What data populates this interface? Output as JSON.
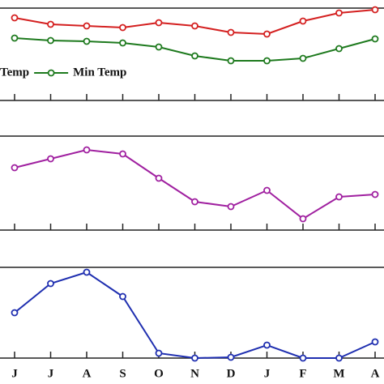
{
  "chart_data": [
    {
      "type": "line",
      "ylim": [
        0,
        114
      ],
      "legend": "lower left",
      "series": [
        {
          "name": "Temp",
          "color": "#d42020",
          "values": [
            102,
            94,
            92,
            90,
            96,
            92,
            84,
            82,
            98,
            108,
            112
          ]
        },
        {
          "name": "Min Temp",
          "color": "#1e7a1e",
          "values": [
            77,
            74,
            73,
            71,
            66,
            55,
            49,
            49,
            52,
            64,
            76
          ]
        }
      ]
    },
    {
      "type": "line",
      "ylim": [
        0,
        116
      ],
      "series": [
        {
          "color": "#a020a0",
          "values": [
            77,
            88,
            99,
            94,
            64,
            35,
            29,
            49,
            14,
            41,
            44
          ]
        }
      ]
    },
    {
      "type": "line",
      "ylim": [
        0,
        112
      ],
      "categories": [
        "J",
        "J",
        "A",
        "S",
        "O",
        "N",
        "D",
        "J",
        "F",
        "M",
        "A"
      ],
      "series": [
        {
          "color": "#1f2fb0",
          "values": [
            56,
            92,
            106,
            76,
            6,
            0,
            1,
            16,
            0,
            0,
            20
          ]
        }
      ]
    }
  ]
}
